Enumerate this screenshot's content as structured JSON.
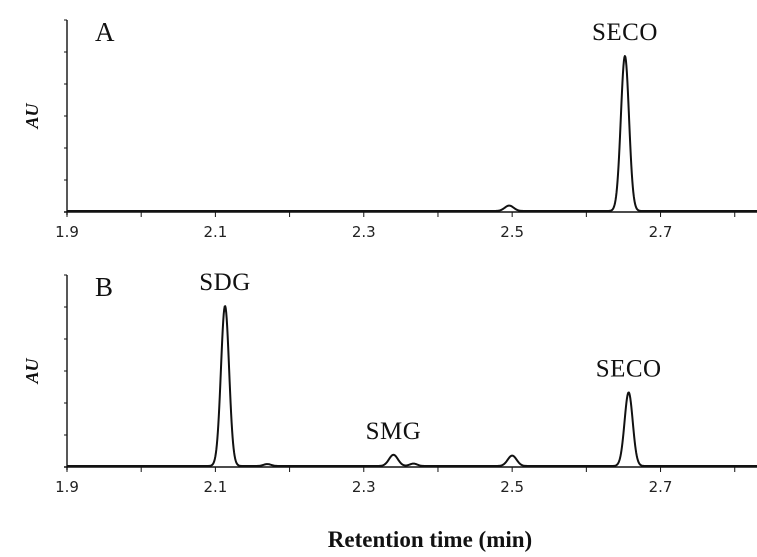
{
  "chart_data": {
    "type": "line",
    "xlabel": "Retention time (min)",
    "x_ticks": [
      "1.9",
      "2.1",
      "2.3",
      "2.5",
      "2.7"
    ],
    "x_tick_values": [
      1.9,
      2.1,
      2.3,
      2.5,
      2.7
    ],
    "xlim": [
      1.9,
      2.83
    ],
    "panels": [
      {
        "letter": "A",
        "ylabel": "AU",
        "ylim": [
          0,
          1
        ],
        "y_minor_ticks": 6,
        "peaks": [
          {
            "rt": 2.496,
            "height": 0.035,
            "width": 0.006,
            "label": ""
          },
          {
            "rt": 2.652,
            "height": 1.0,
            "width": 0.0055,
            "label": "SECO"
          }
        ]
      },
      {
        "letter": "B",
        "ylabel": "AU",
        "ylim": [
          0,
          1
        ],
        "y_minor_ticks": 6,
        "peaks": [
          {
            "rt": 2.113,
            "height": 1.0,
            "width": 0.0055,
            "label": "SDG"
          },
          {
            "rt": 2.17,
            "height": 0.012,
            "width": 0.005,
            "label": ""
          },
          {
            "rt": 2.34,
            "height": 0.07,
            "width": 0.006,
            "label": "SMG"
          },
          {
            "rt": 2.367,
            "height": 0.015,
            "width": 0.005,
            "label": ""
          },
          {
            "rt": 2.5,
            "height": 0.065,
            "width": 0.006,
            "label": ""
          },
          {
            "rt": 2.657,
            "height": 0.46,
            "width": 0.0055,
            "label": "SECO"
          }
        ]
      }
    ]
  }
}
